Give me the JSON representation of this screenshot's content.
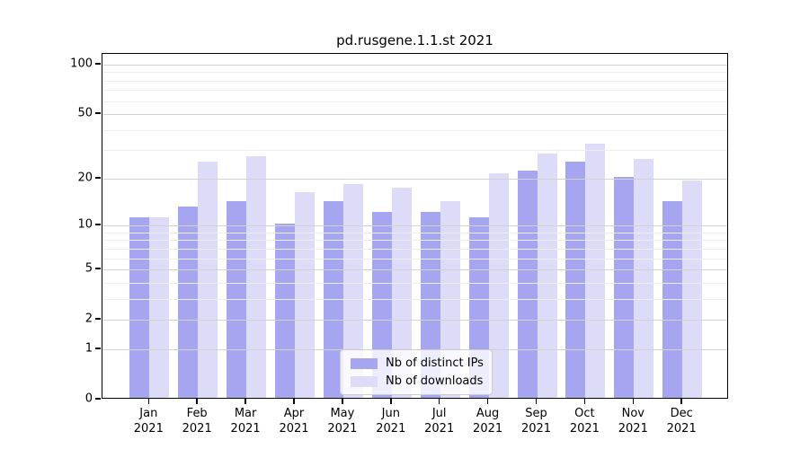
{
  "title": "pd.rusgene.1.1.st 2021",
  "colors": {
    "ips_bar": "#a6a6f0",
    "downloads_bar": "#dcdcf8",
    "grid_major": "#d2d2d2",
    "grid_minor": "#ededed",
    "axis": "#000000",
    "legend_border": "#cccccc"
  },
  "legend": {
    "items": [
      {
        "label": "Nb of distinct IPs",
        "color_key": "ips_bar"
      },
      {
        "label": "Nb of downloads",
        "color_key": "downloads_bar"
      }
    ]
  },
  "chart_data": {
    "type": "bar",
    "title": "pd.rusgene.1.1.st 2021",
    "months": [
      "Jan",
      "Feb",
      "Mar",
      "Apr",
      "May",
      "Jun",
      "Jul",
      "Aug",
      "Sep",
      "Oct",
      "Nov",
      "Dec"
    ],
    "year": "2021",
    "series": [
      {
        "name": "Nb of distinct IPs",
        "values": [
          11,
          13,
          14,
          10,
          14,
          12,
          12,
          11,
          22,
          25,
          20,
          14
        ]
      },
      {
        "name": "Nb of downloads",
        "values": [
          11,
          25,
          27,
          16,
          18,
          17,
          14,
          21,
          28,
          32,
          26,
          19
        ]
      }
    ],
    "y_scale": "log1p",
    "y_ticks_major": [
      0,
      1,
      2,
      5,
      10,
      20,
      50,
      100
    ],
    "y_gridlines_minor": [
      3,
      4,
      6,
      7,
      8,
      9,
      30,
      40,
      60,
      70,
      80,
      90
    ],
    "ylim": [
      0,
      116
    ],
    "xlabel": "",
    "ylabel": "",
    "grid": true,
    "legend_position": "lower center"
  }
}
